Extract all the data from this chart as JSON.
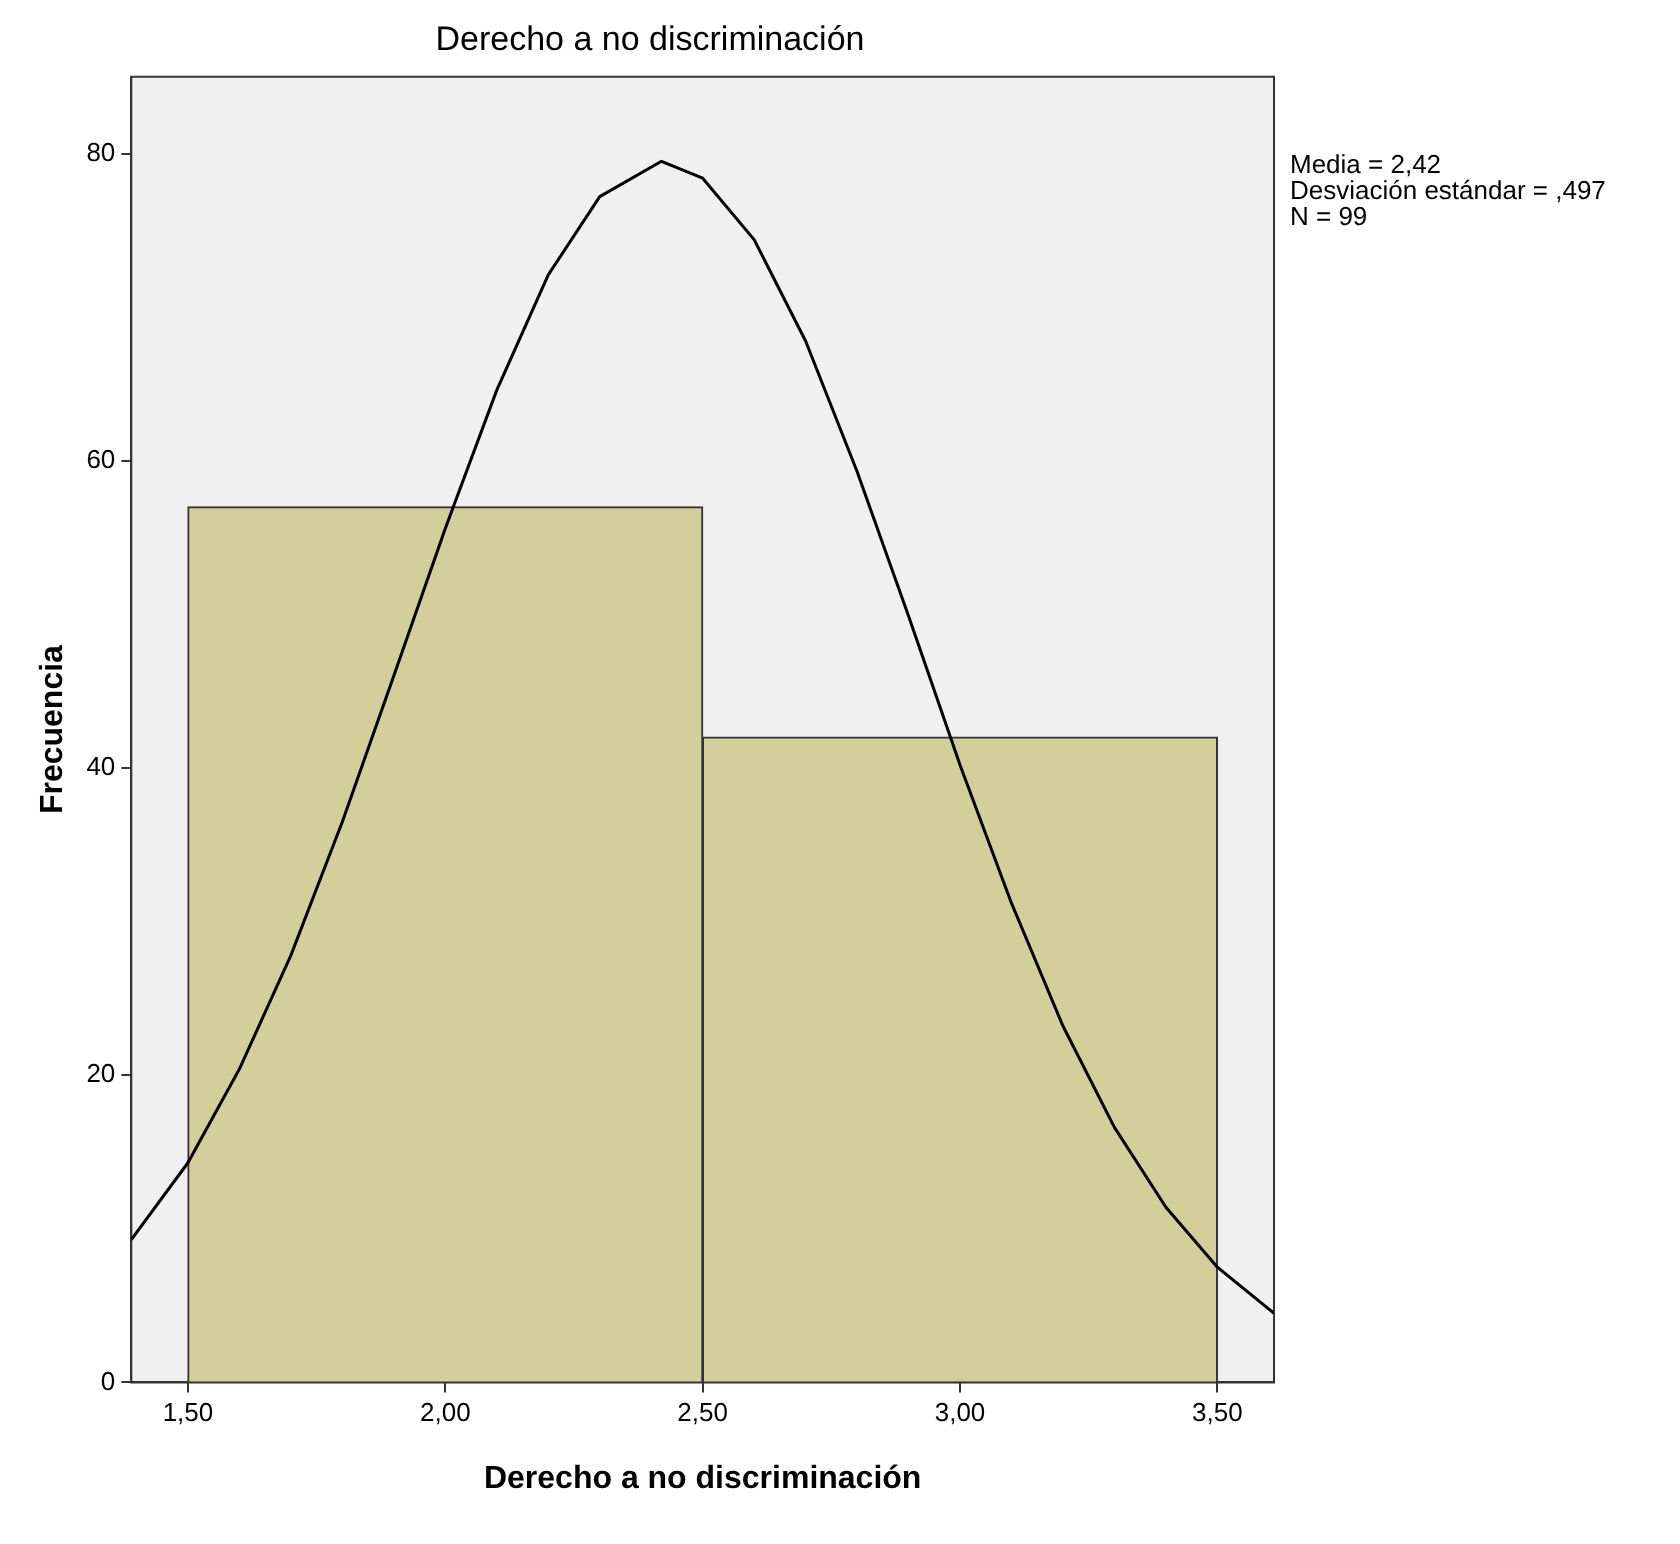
{
  "chart_data": {
    "type": "histogram",
    "title": "Derecho a no discriminación",
    "xlabel": "Derecho a no discriminación",
    "ylabel": "Frecuencia",
    "bins": [
      1.5,
      2.5,
      3.5
    ],
    "values": [
      57,
      42
    ],
    "color": "#d3ce9a",
    "series": [
      {
        "type": "line",
        "color": "#000000",
        "x": [
          1.39,
          1.5,
          1.6,
          1.7,
          1.8,
          1.9,
          2.0,
          2.1,
          2.2,
          2.3,
          2.42,
          2.5,
          2.6,
          2.7,
          2.8,
          2.9,
          3.0,
          3.1,
          3.2,
          3.3,
          3.4,
          3.5,
          3.61
        ],
        "values": [
          9.3,
          14.3,
          20.4,
          27.8,
          36.5,
          46.0,
          55.6,
          64.6,
          72.1,
          77.2,
          79.5,
          78.4,
          74.4,
          67.8,
          59.3,
          49.9,
          40.2,
          31.2,
          23.2,
          16.6,
          11.4,
          7.5,
          4.5
        ]
      }
    ],
    "xlim": [
      1.39,
      3.61
    ],
    "xticks": [
      {
        "value": 1.5,
        "label": "1,50"
      },
      {
        "value": 2,
        "label": "2,00"
      },
      {
        "value": 2.5,
        "label": "2,50"
      },
      {
        "value": 3,
        "label": "3,00"
      },
      {
        "value": 3.5,
        "label": "3,50"
      }
    ],
    "ylim": [
      0,
      85
    ],
    "yticks": [
      0,
      20,
      40,
      60,
      80
    ],
    "annotations": [
      "Media = 2,42",
      "Desviación estándar = ,497",
      "N = 99"
    ],
    "grid": false,
    "legend": false
  }
}
